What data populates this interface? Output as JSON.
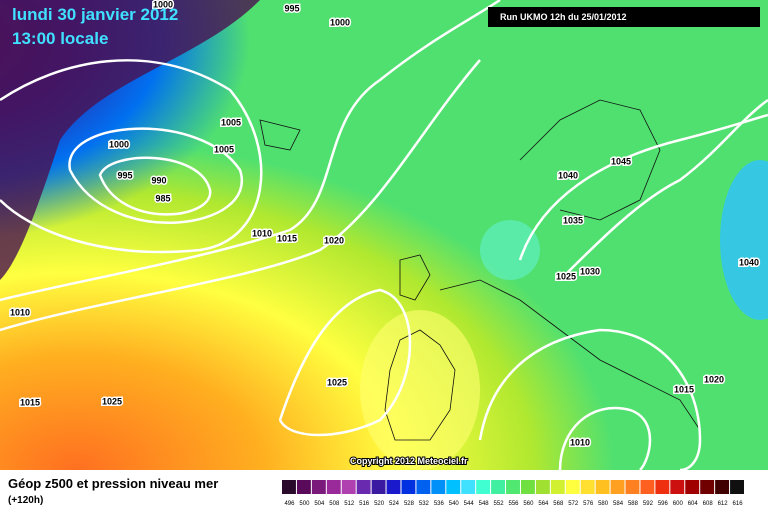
{
  "header": {
    "date": "lundi 30 janvier 2012",
    "time": "13:00 locale",
    "run": "Run UKMO 12h du 25/01/2012"
  },
  "isobar_labels": [
    "1000",
    "995",
    "1000",
    "1005",
    "1005",
    "1000",
    "995",
    "990",
    "985",
    "1010",
    "1015",
    "1020",
    "1040",
    "1045",
    "1035",
    "1025",
    "1030",
    "1040",
    "1010",
    "1015",
    "1025",
    "1025",
    "1020",
    "1015",
    "1010"
  ],
  "copyright": "Copyright 2012 Meteociel.fr",
  "legend": {
    "title": "Géop z500 et pression niveau mer",
    "lead": "(+120h)",
    "scale": [
      {
        "label": "496",
        "color": "#2a0a2a"
      },
      {
        "label": "500",
        "color": "#5a0a5a"
      },
      {
        "label": "504",
        "color": "#7a1a7a"
      },
      {
        "label": "508",
        "color": "#9a2a9a"
      },
      {
        "label": "512",
        "color": "#b040b0"
      },
      {
        "label": "516",
        "color": "#6a2ab0"
      },
      {
        "label": "520",
        "color": "#3a1aa0"
      },
      {
        "label": "524",
        "color": "#1a1acc"
      },
      {
        "label": "528",
        "color": "#0030e0"
      },
      {
        "label": "532",
        "color": "#0060f0"
      },
      {
        "label": "536",
        "color": "#0090f8"
      },
      {
        "label": "540",
        "color": "#00c0ff"
      },
      {
        "label": "544",
        "color": "#40e0ff"
      },
      {
        "label": "548",
        "color": "#40ffd0"
      },
      {
        "label": "552",
        "color": "#40f0a0"
      },
      {
        "label": "556",
        "color": "#50e870"
      },
      {
        "label": "560",
        "color": "#70e040"
      },
      {
        "label": "564",
        "color": "#a0e030"
      },
      {
        "label": "568",
        "color": "#d0f030"
      },
      {
        "label": "572",
        "color": "#ffff40"
      },
      {
        "label": "576",
        "color": "#ffe030"
      },
      {
        "label": "580",
        "color": "#ffc020"
      },
      {
        "label": "584",
        "color": "#ffa020"
      },
      {
        "label": "588",
        "color": "#ff8020"
      },
      {
        "label": "592",
        "color": "#ff6020"
      },
      {
        "label": "596",
        "color": "#ee3010"
      },
      {
        "label": "600",
        "color": "#cc1010"
      },
      {
        "label": "604",
        "color": "#a00000"
      },
      {
        "label": "608",
        "color": "#700000"
      },
      {
        "label": "612",
        "color": "#400000"
      },
      {
        "label": "616",
        "color": "#101010"
      }
    ]
  }
}
